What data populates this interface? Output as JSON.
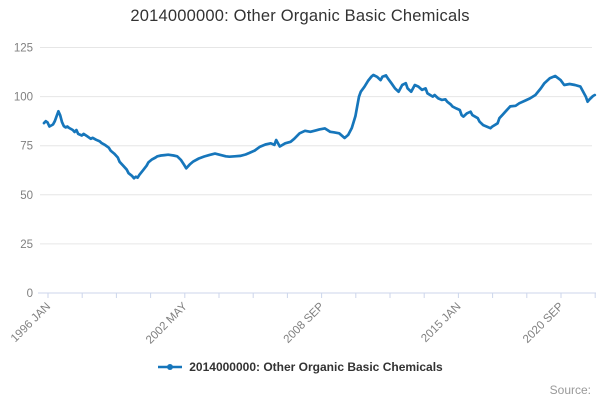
{
  "title": "2014000000: Other Organic Basic Chemicals",
  "legend": {
    "label": "2014000000: Other Organic Basic Chemicals"
  },
  "source_label": "Source:",
  "colors": {
    "line": "#1676bb",
    "title_text": "#333333",
    "axis_label_text": "#808080",
    "gridline": "#e6e6e6",
    "axis_line": "#ccd6eb",
    "legend_text": "#333333",
    "source_text": "#999999"
  },
  "chart_data": {
    "type": "line",
    "title": "2014000000: Other Organic Basic Chemicals",
    "xlabel": "",
    "ylabel": "",
    "grid": "horizontal",
    "legend_position": "bottom",
    "x_axis": {
      "unit": "months since 1996 JAN (monthly index series)",
      "tick_count": 17,
      "labeled_ticks": [
        {
          "label": "1996 JAN",
          "tick_index": 0
        },
        {
          "label": "2002 MAY",
          "tick_index": 4
        },
        {
          "label": "2008 SEP",
          "tick_index": 8
        },
        {
          "label": "2015 JAN",
          "tick_index": 12
        },
        {
          "label": "2020 SEP",
          "tick_index": 15
        }
      ],
      "label_rotation_deg": -45
    },
    "y_axis": {
      "ticks": [
        0,
        25,
        50,
        75,
        100,
        125
      ],
      "range": [
        0,
        125
      ]
    },
    "series": [
      {
        "name": "2014000000: Other Organic Basic Chemicals",
        "points": [
          [
            0,
            86.5
          ],
          [
            1,
            87.5
          ],
          [
            2,
            86.8
          ],
          [
            3,
            84.8
          ],
          [
            5,
            85.8
          ],
          [
            6,
            87.5
          ],
          [
            7,
            90
          ],
          [
            8,
            92.5
          ],
          [
            9,
            90.5
          ],
          [
            10,
            87
          ],
          [
            11,
            85
          ],
          [
            12,
            84.3
          ],
          [
            13,
            84.8
          ],
          [
            14,
            84
          ],
          [
            16,
            83
          ],
          [
            17,
            82
          ],
          [
            18,
            83
          ],
          [
            19,
            81
          ],
          [
            21,
            80.2
          ],
          [
            22,
            81
          ],
          [
            24,
            79.8
          ],
          [
            26,
            78.5
          ],
          [
            27,
            79
          ],
          [
            29,
            78
          ],
          [
            31,
            77.2
          ],
          [
            32,
            76.3
          ],
          [
            34,
            75.3
          ],
          [
            36,
            74
          ],
          [
            37,
            72.5
          ],
          [
            39,
            71
          ],
          [
            41,
            69
          ],
          [
            42,
            66.8
          ],
          [
            44,
            64.8
          ],
          [
            46,
            62.8
          ],
          [
            47,
            61
          ],
          [
            49,
            59.5
          ],
          [
            50,
            58.4
          ],
          [
            51,
            59.2
          ],
          [
            52,
            58.7
          ],
          [
            53,
            60.2
          ],
          [
            55,
            62.5
          ],
          [
            57,
            64.8
          ],
          [
            58,
            66.5
          ],
          [
            60,
            68
          ],
          [
            62,
            69
          ],
          [
            63,
            69.6
          ],
          [
            65,
            70
          ],
          [
            67,
            70.2
          ],
          [
            69,
            70.4
          ],
          [
            72,
            70
          ],
          [
            74,
            69.6
          ],
          [
            76,
            67.8
          ],
          [
            78,
            65
          ],
          [
            79,
            63.5
          ],
          [
            81,
            65.5
          ],
          [
            83,
            67
          ],
          [
            86,
            68.5
          ],
          [
            89,
            69.5
          ],
          [
            92,
            70.3
          ],
          [
            95,
            71
          ],
          [
            98,
            70.3
          ],
          [
            101,
            69.6
          ],
          [
            103,
            69.4
          ],
          [
            106,
            69.6
          ],
          [
            109,
            69.8
          ],
          [
            112,
            70.5
          ],
          [
            114,
            71.3
          ],
          [
            117,
            72.5
          ],
          [
            120,
            74.5
          ],
          [
            123,
            75.6
          ],
          [
            126,
            76.2
          ],
          [
            128,
            75.4
          ],
          [
            129,
            77.9
          ],
          [
            131,
            74.6
          ],
          [
            134,
            76.2
          ],
          [
            137,
            77
          ],
          [
            139,
            78.5
          ],
          [
            142,
            81.3
          ],
          [
            145,
            82.6
          ],
          [
            148,
            82.1
          ],
          [
            151,
            82.8
          ],
          [
            153,
            83.3
          ],
          [
            156,
            83.8
          ],
          [
            159,
            82.1
          ],
          [
            161,
            81.8
          ],
          [
            164,
            81.3
          ],
          [
            167,
            78.9
          ],
          [
            169,
            80.5
          ],
          [
            171,
            84
          ],
          [
            173,
            90
          ],
          [
            174,
            95
          ],
          [
            175,
            100
          ],
          [
            176,
            102.5
          ],
          [
            178,
            105
          ],
          [
            180,
            108
          ],
          [
            182,
            110.3
          ],
          [
            183,
            111
          ],
          [
            185,
            110.1
          ],
          [
            187,
            108.4
          ],
          [
            188,
            110.1
          ],
          [
            190,
            110.8
          ],
          [
            191,
            109.3
          ],
          [
            193,
            106.8
          ],
          [
            195,
            104.2
          ],
          [
            197,
            102.5
          ],
          [
            199,
            105.9
          ],
          [
            201,
            106.8
          ],
          [
            202,
            104.2
          ],
          [
            204,
            102.5
          ],
          [
            206,
            105.9
          ],
          [
            208,
            105.1
          ],
          [
            210,
            103.4
          ],
          [
            212,
            104.2
          ],
          [
            213,
            101.7
          ],
          [
            216,
            100
          ],
          [
            217,
            100.8
          ],
          [
            219,
            99.1
          ],
          [
            221,
            98.3
          ],
          [
            223,
            98.6
          ],
          [
            224,
            97.4
          ],
          [
            226,
            96
          ],
          [
            227,
            94.9
          ],
          [
            229,
            94
          ],
          [
            231,
            93.2
          ],
          [
            232,
            90.6
          ],
          [
            233,
            89.8
          ],
          [
            235,
            91.5
          ],
          [
            237,
            92.3
          ],
          [
            238,
            90.6
          ],
          [
            241,
            89
          ],
          [
            242,
            87.2
          ],
          [
            244,
            85.5
          ],
          [
            246,
            84.7
          ],
          [
            248,
            83.9
          ],
          [
            249,
            84.7
          ],
          [
            252,
            86.4
          ],
          [
            253,
            89
          ],
          [
            255,
            91
          ],
          [
            257,
            93
          ],
          [
            259,
            95
          ],
          [
            262,
            95.3
          ],
          [
            264,
            96.6
          ],
          [
            267,
            97.8
          ],
          [
            270,
            99.1
          ],
          [
            273,
            100.8
          ],
          [
            276,
            104.2
          ],
          [
            278,
            106.8
          ],
          [
            281,
            109.3
          ],
          [
            284,
            110.5
          ],
          [
            287,
            108.4
          ],
          [
            289,
            105.9
          ],
          [
            292,
            106.4
          ],
          [
            295,
            105.9
          ],
          [
            298,
            105.1
          ],
          [
            301,
            100
          ],
          [
            302,
            97.4
          ],
          [
            303,
            98.5
          ],
          [
            305,
            100.3
          ],
          [
            306,
            100.8
          ]
        ]
      }
    ]
  }
}
